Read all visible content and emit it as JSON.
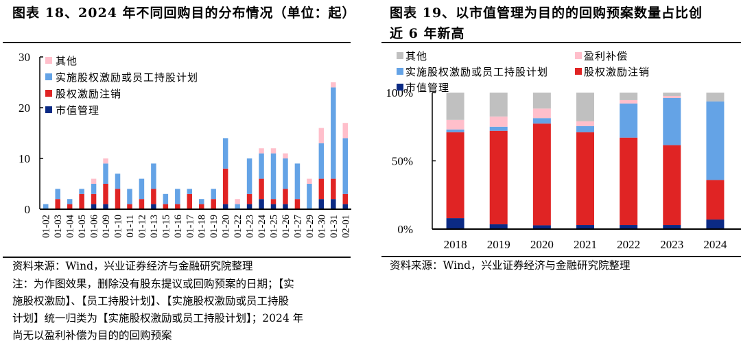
{
  "left": {
    "title": "图表 18、2024 年不同回购目的分布情况（单位：起）",
    "source": "资料来源：Wind，兴业证券经济与金融研究院整理",
    "note_lines": [
      "注：为作图效果，删除没有股东提议或回购预案的日期；【实",
      "施股权激励】、【员工持股计划】、【实施股权激励或员工持股",
      "计划】统一归类为【实施股权激励或员工持股计划】；2024 年",
      "尚无以盈利补偿为目的的回购预案"
    ]
  },
  "right": {
    "title_lines": [
      "图表 19、以市值管理为目的的回购预案数量占比创",
      "近 6 年新高"
    ],
    "source": "资料来源：Wind，兴业证券经济与金融研究院整理"
  },
  "chart_data": [
    {
      "type": "bar",
      "stacked": true,
      "title": "图表 18、2024 年不同回购目的分布情况（单位：起）",
      "xlabel": "",
      "ylabel": "",
      "ylim": [
        0,
        30
      ],
      "yticks": [
        "0",
        "10",
        "20",
        "30"
      ],
      "ytick_values": [
        0,
        10,
        20,
        30
      ],
      "legend_position": "top-left",
      "categories": [
        "01-02",
        "01-03",
        "01-04",
        "01-05",
        "01-06",
        "01-09",
        "01-10",
        "01-11",
        "01-12",
        "01-13",
        "01-15",
        "01-16",
        "01-17",
        "01-18",
        "01-19",
        "01-20",
        "01-22",
        "01-23",
        "01-24",
        "01-25",
        "01-26",
        "01-27",
        "01-29",
        "01-30",
        "01-31",
        "02-01"
      ],
      "series": [
        {
          "name": "市值管理",
          "color": "#0b2a84",
          "values": [
            0,
            0,
            0,
            0,
            1,
            1,
            0,
            0,
            0,
            1,
            0,
            0,
            0,
            0,
            0,
            1,
            0,
            1,
            2,
            1,
            1,
            0,
            0,
            2,
            2,
            1
          ]
        },
        {
          "name": "股权激励注销",
          "color": "#e02424",
          "values": [
            0,
            2,
            1,
            3,
            2,
            4,
            4,
            1,
            2,
            3,
            1,
            1,
            3,
            1,
            2,
            7,
            0,
            2,
            4,
            1,
            3,
            2,
            0,
            4,
            4,
            2
          ]
        },
        {
          "name": "实施股权激励或员工持股计划",
          "color": "#64a3e6",
          "values": [
            1,
            2,
            1,
            1,
            2,
            4,
            3,
            3,
            4,
            5,
            2,
            3,
            1,
            1,
            2,
            6,
            1,
            7,
            5,
            9,
            6,
            7,
            5,
            7,
            18,
            11
          ]
        },
        {
          "name": "其他",
          "color": "#ffbfcb",
          "values": [
            0,
            0,
            0,
            0,
            1,
            1,
            0,
            0,
            0,
            0,
            0,
            0,
            0,
            0,
            0,
            0,
            1,
            0,
            1,
            1,
            1,
            0,
            1,
            3,
            1,
            3
          ]
        }
      ],
      "legend": [
        "其他",
        "实施股权激励或员工持股计划",
        "股权激励注销",
        "市值管理"
      ]
    },
    {
      "type": "bar",
      "stacked": true,
      "percent": true,
      "title": "图表 19、以市值管理为目的的回购预案数量占比创近 6 年新高",
      "xlabel": "",
      "ylabel": "",
      "ylim": [
        0,
        100
      ],
      "yticks": [
        "0%",
        "50%",
        "100%"
      ],
      "ytick_values": [
        0,
        50,
        100
      ],
      "legend_position": "top",
      "categories": [
        "2018",
        "2019",
        "2020",
        "2021",
        "2022",
        "2023",
        "2024"
      ],
      "series": [
        {
          "name": "市值管理",
          "color": "#0b2a84",
          "values": [
            8,
            3.5,
            2.8,
            3,
            3,
            3,
            7
          ]
        },
        {
          "name": "股权激励注销",
          "color": "#e02424",
          "values": [
            63,
            68.5,
            74.5,
            68,
            64,
            58.5,
            29
          ]
        },
        {
          "name": "实施股权激励或员工持股计划",
          "color": "#64a3e6",
          "values": [
            2,
            3,
            4,
            4.5,
            25,
            34.5,
            57.5
          ]
        },
        {
          "name": "盈利补偿",
          "color": "#ffbfcb",
          "values": [
            7,
            7.5,
            7,
            3.5,
            2.5,
            1.5,
            0
          ]
        },
        {
          "name": "其他",
          "color": "#c0c0c0",
          "values": [
            20,
            17.5,
            11.7,
            21,
            5.5,
            2.5,
            6.5
          ]
        }
      ],
      "legend": [
        "其他",
        "盈利补偿",
        "实施股权激励或员工持股计划",
        "股权激励注销",
        "市值管理"
      ]
    }
  ]
}
